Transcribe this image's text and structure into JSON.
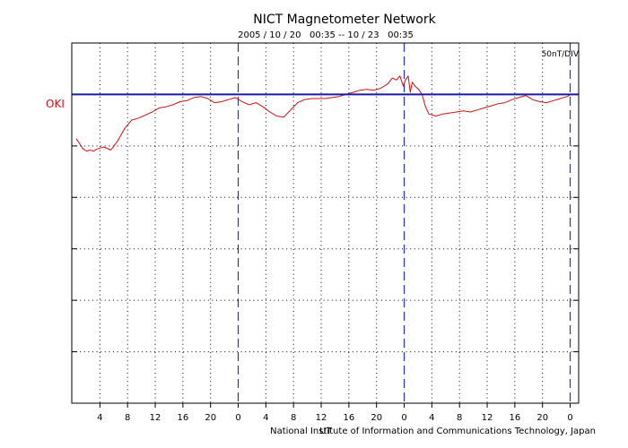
{
  "chart_data": {
    "type": "line",
    "title": "NICT Magnetometer Network",
    "subtitle": "2005 / 10 / 20   00:35 -- 10 / 23   00:35",
    "scale_label": "50nT/DIV",
    "xlabel": "UT",
    "credit": "National Institute of Information and Communications Technology, Japan",
    "station_label": "OKI",
    "x_ticks": [
      "4",
      "8",
      "12",
      "16",
      "20",
      "0",
      "4",
      "8",
      "12",
      "16",
      "20",
      "0",
      "4",
      "8",
      "12",
      "16",
      "20",
      "0"
    ],
    "day_boundaries_hours": [
      23.42,
      47.42,
      71.42
    ],
    "grid": true,
    "xlim": [
      0,
      72
    ],
    "ylim": [
      -250,
      100
    ],
    "y_divisions": 7,
    "baseline_value": 50,
    "colors": {
      "trace": "#cc1111",
      "baseline": "#1a1aa8",
      "day_line": "#2233cc",
      "station": "#cc1111"
    },
    "series": [
      {
        "points": [
          [
            0.0,
            7
          ],
          [
            0.5,
            2
          ],
          [
            1,
            -3
          ],
          [
            1.5,
            -5
          ],
          [
            2,
            -4
          ],
          [
            2.5,
            -5
          ],
          [
            3,
            -3
          ],
          [
            4,
            -1
          ],
          [
            5,
            -4
          ],
          [
            6,
            5
          ],
          [
            7,
            17
          ],
          [
            8,
            25
          ],
          [
            9,
            27
          ],
          [
            10,
            30
          ],
          [
            11,
            33
          ],
          [
            12,
            37
          ],
          [
            13,
            38
          ],
          [
            14,
            40
          ],
          [
            15,
            43
          ],
          [
            16,
            44
          ],
          [
            17,
            47
          ],
          [
            18,
            48
          ],
          [
            19,
            46
          ],
          [
            20,
            42
          ],
          [
            21,
            43
          ],
          [
            22,
            45
          ],
          [
            23,
            47
          ],
          [
            24,
            43
          ],
          [
            25,
            40
          ],
          [
            26,
            42
          ],
          [
            27,
            38
          ],
          [
            28,
            33
          ],
          [
            29,
            29
          ],
          [
            30,
            28
          ],
          [
            31,
            35
          ],
          [
            32,
            42
          ],
          [
            33,
            45
          ],
          [
            34,
            46
          ],
          [
            35,
            46
          ],
          [
            36,
            46
          ],
          [
            37,
            47
          ],
          [
            38,
            48
          ],
          [
            39,
            50
          ],
          [
            40,
            52
          ],
          [
            41,
            54
          ],
          [
            42,
            55
          ],
          [
            43,
            54
          ],
          [
            44,
            56
          ],
          [
            45,
            60
          ],
          [
            45.7,
            66
          ],
          [
            46.3,
            64
          ],
          [
            46.8,
            68
          ],
          [
            47.3,
            58
          ],
          [
            47.6,
            64
          ],
          [
            48,
            68
          ],
          [
            48.3,
            52
          ],
          [
            48.6,
            62
          ],
          [
            49,
            58
          ],
          [
            49.5,
            55
          ],
          [
            50,
            50
          ],
          [
            50.5,
            38
          ],
          [
            51,
            31
          ],
          [
            51.5,
            30
          ],
          [
            52,
            29
          ],
          [
            53,
            31
          ],
          [
            54,
            32
          ],
          [
            55,
            33
          ],
          [
            56,
            34
          ],
          [
            57,
            33
          ],
          [
            58,
            35
          ],
          [
            59,
            37
          ],
          [
            60,
            39
          ],
          [
            61,
            41
          ],
          [
            62,
            42
          ],
          [
            63,
            45
          ],
          [
            64,
            47
          ],
          [
            65,
            49
          ],
          [
            66,
            45
          ],
          [
            67,
            43
          ],
          [
            68,
            42
          ],
          [
            69,
            44
          ],
          [
            70,
            46
          ],
          [
            71,
            48
          ],
          [
            71.5,
            50
          ]
        ]
      }
    ]
  }
}
